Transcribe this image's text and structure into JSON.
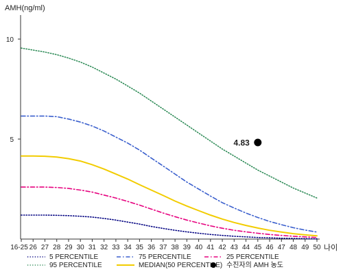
{
  "chart_data": {
    "type": "line",
    "ylabel": "AMH(ng/ml)",
    "xlabel": "나이",
    "categories": [
      "16-25",
      "26",
      "27",
      "28",
      "29",
      "30",
      "31",
      "32",
      "33",
      "34",
      "35",
      "36",
      "37",
      "38",
      "39",
      "40",
      "41",
      "42",
      "43",
      "44",
      "45",
      "46",
      "47",
      "48",
      "49",
      "50"
    ],
    "yticks": [
      5,
      10
    ],
    "ylim": [
      0,
      11.2
    ],
    "grid": false,
    "legend_position": "bottom",
    "series": [
      {
        "name": "5 PERCENTILE",
        "color": "#000080",
        "style": "dotted",
        "values": [
          1.2,
          1.2,
          1.2,
          1.19,
          1.17,
          1.14,
          1.1,
          1.03,
          0.95,
          0.85,
          0.75,
          0.63,
          0.53,
          0.44,
          0.36,
          0.29,
          0.23,
          0.18,
          0.14,
          0.11,
          0.08,
          0.06,
          0.04,
          0.03,
          0.02,
          0.01
        ]
      },
      {
        "name": "75 PERCENTILE",
        "color": "#3a5fcd",
        "style": "dashdot",
        "values": [
          6.15,
          6.15,
          6.15,
          6.12,
          6.0,
          5.85,
          5.65,
          5.4,
          5.1,
          4.8,
          4.45,
          4.05,
          3.65,
          3.25,
          2.85,
          2.5,
          2.15,
          1.82,
          1.55,
          1.3,
          1.08,
          0.88,
          0.72,
          0.57,
          0.45,
          0.35
        ]
      },
      {
        "name": "25 PERCENTILE",
        "color": "#e6007e",
        "style": "dashdot",
        "values": [
          2.6,
          2.6,
          2.6,
          2.58,
          2.53,
          2.45,
          2.35,
          2.2,
          2.05,
          1.88,
          1.7,
          1.5,
          1.3,
          1.12,
          0.95,
          0.8,
          0.66,
          0.54,
          0.44,
          0.36,
          0.29,
          0.23,
          0.18,
          0.14,
          0.11,
          0.08
        ]
      },
      {
        "name": "95 PERCENTILE",
        "color": "#2e8b57",
        "style": "dotted",
        "values": [
          9.55,
          9.45,
          9.35,
          9.22,
          9.05,
          8.85,
          8.6,
          8.3,
          8.0,
          7.65,
          7.3,
          6.9,
          6.5,
          6.1,
          5.7,
          5.3,
          4.9,
          4.5,
          4.15,
          3.8,
          3.45,
          3.15,
          2.85,
          2.55,
          2.3,
          2.05
        ]
      },
      {
        "name": "MEDIAN(50 PERCENTILE)",
        "color": "#f2cc00",
        "style": "solid",
        "values": [
          4.15,
          4.15,
          4.14,
          4.1,
          4.02,
          3.9,
          3.72,
          3.5,
          3.25,
          3.0,
          2.72,
          2.45,
          2.18,
          1.9,
          1.65,
          1.42,
          1.2,
          1.0,
          0.83,
          0.68,
          0.55,
          0.44,
          0.35,
          0.27,
          0.21,
          0.16
        ]
      }
    ],
    "points": [
      {
        "name": "수진자의 AMH 농도",
        "x": "45",
        "y": 4.83,
        "label": "4.83",
        "color": "#000000"
      }
    ]
  }
}
